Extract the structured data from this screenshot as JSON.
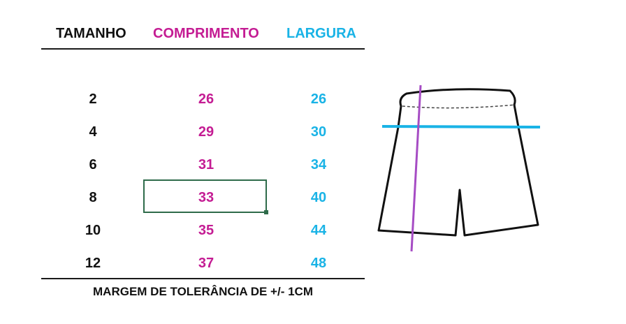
{
  "table": {
    "headers": {
      "size": "TAMANHO",
      "length": "COMPRIMENTO",
      "width": "LARGURA"
    },
    "rows": [
      {
        "size": "2",
        "length": "26",
        "width": "26"
      },
      {
        "size": "4",
        "length": "29",
        "width": "30"
      },
      {
        "size": "6",
        "length": "31",
        "width": "34"
      },
      {
        "size": "8",
        "length": "33",
        "width": "40"
      },
      {
        "size": "10",
        "length": "35",
        "width": "44"
      },
      {
        "size": "12",
        "length": "37",
        "width": "48"
      }
    ],
    "note": "MARGEM DE TOLERÂNCIA DE +/- 1CM"
  },
  "colors": {
    "length": "#c41c93",
    "width": "#19b3e6",
    "selection": "#2e6b4a",
    "length_line": "#a64cc4"
  },
  "illustration": {
    "icon": "shorts-measurement-diagram"
  }
}
